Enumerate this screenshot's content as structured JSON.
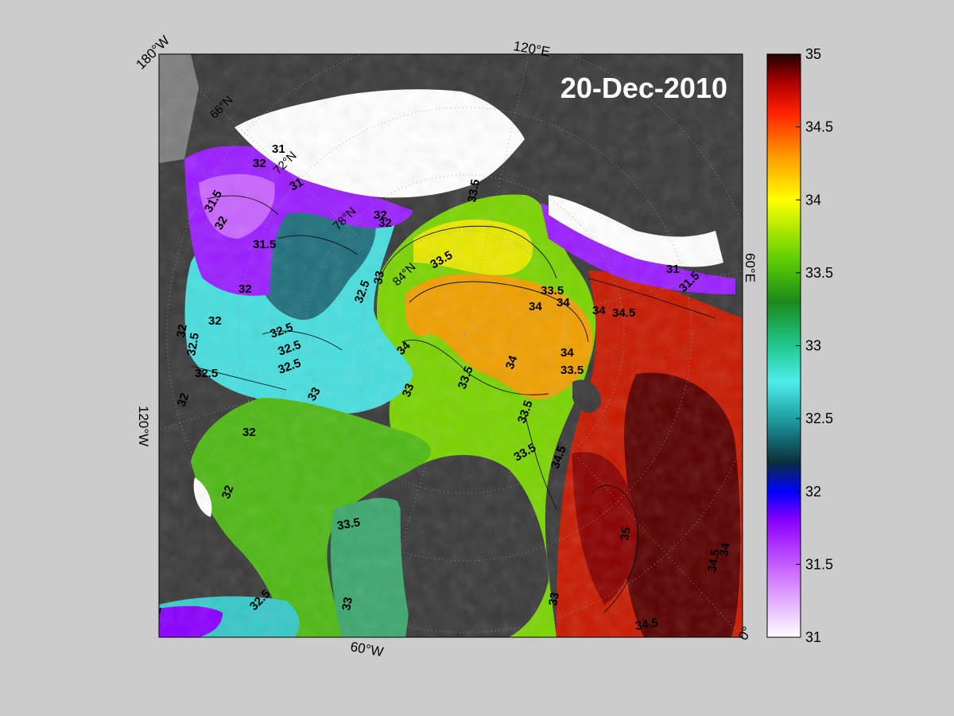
{
  "map": {
    "date_label": "20-Dec-2010",
    "frame_labels": [
      {
        "id": "lon-180w",
        "text": "180°W"
      },
      {
        "id": "lon-120e",
        "text": "120°E"
      },
      {
        "id": "lon-60e",
        "text": "60°E"
      },
      {
        "id": "lon-120w",
        "text": "120°W"
      },
      {
        "id": "lon-60w",
        "text": "60°W"
      },
      {
        "id": "lon-0",
        "text": "0°"
      }
    ],
    "latitude_labels": [
      {
        "id": "lat-66n",
        "text": "66°N"
      },
      {
        "id": "lat-72n",
        "text": "72°N"
      },
      {
        "id": "lat-78n",
        "text": "78°N"
      },
      {
        "id": "lat-84n",
        "text": "84°N"
      }
    ],
    "contour_labels": [
      "31",
      "32",
      "31",
      "31.5",
      "32",
      "31.5",
      "32",
      "32",
      "32.5",
      "33",
      "33.5",
      "33.5",
      "32.5",
      "32.5",
      "32.5",
      "32.5",
      "32.5",
      "32",
      "32",
      "34",
      "33",
      "33.5",
      "34",
      "34",
      "34",
      "33.5",
      "33.5",
      "34",
      "34.5",
      "33.5",
      "34.5",
      "33.5",
      "33",
      "32",
      "32.5",
      "32",
      "33.5",
      "33",
      "33",
      "34.5",
      "34",
      "34.5",
      "35",
      "31",
      "31.5",
      "32",
      "32",
      "34",
      "32"
    ]
  },
  "colorbar": {
    "ticks": [
      "35",
      "34.5",
      "34",
      "33.5",
      "33",
      "32.5",
      "32",
      "31.5",
      "31"
    ],
    "min": 31,
    "max": 35,
    "stops": [
      {
        "value": 31.0,
        "color": "#ffffff"
      },
      {
        "value": 31.5,
        "color": "#c45cff"
      },
      {
        "value": 31.8,
        "color": "#8a00ff"
      },
      {
        "value": 32.0,
        "color": "#0000ff"
      },
      {
        "value": 32.2,
        "color": "#0b2e3c"
      },
      {
        "value": 32.5,
        "color": "#1e9ea0"
      },
      {
        "value": 32.75,
        "color": "#50ecec"
      },
      {
        "value": 33.0,
        "color": "#20c890"
      },
      {
        "value": 33.3,
        "color": "#1a8a1a"
      },
      {
        "value": 33.6,
        "color": "#60d000"
      },
      {
        "value": 34.0,
        "color": "#ffff00"
      },
      {
        "value": 34.3,
        "color": "#ff9a00"
      },
      {
        "value": 34.6,
        "color": "#ff2000"
      },
      {
        "value": 34.8,
        "color": "#b00000"
      },
      {
        "value": 35.0,
        "color": "#220000"
      }
    ]
  }
}
